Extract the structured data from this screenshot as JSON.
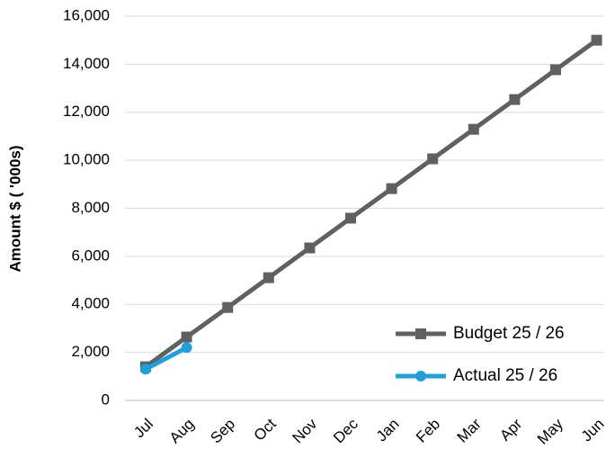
{
  "chart_data": {
    "type": "line",
    "y_label": "Amount $ ( '000s)",
    "categories": [
      "Jul",
      "Aug",
      "Sep",
      "Oct",
      "Nov",
      "Dec",
      "Jan",
      "Feb",
      "Mar",
      "Apr",
      "May",
      "Jun"
    ],
    "series": [
      {
        "name": "Budget 25 / 26",
        "color": "#606060",
        "marker": "square",
        "values": [
          1400,
          2640,
          3870,
          5110,
          6350,
          7590,
          8820,
          10060,
          11290,
          12530,
          13770,
          15000
        ]
      },
      {
        "name": "Actual 25 / 26",
        "color": "#1ea0dc",
        "marker": "circle",
        "values": [
          1300,
          2200,
          null,
          null,
          null,
          null,
          null,
          null,
          null,
          null,
          null,
          null
        ]
      }
    ],
    "ylim": [
      0,
      16000
    ],
    "yticks": [
      0,
      {
        "value": 2000,
        "label": "2,000"
      },
      {
        "value": 4000,
        "label": "4,000"
      },
      {
        "value": 6000,
        "label": "6,000"
      },
      {
        "value": 8000,
        "label": "8,000"
      },
      {
        "value": 10000,
        "label": "10,000"
      },
      {
        "value": 12000,
        "label": "12,000"
      },
      {
        "value": 14000,
        "label": "14,000"
      },
      {
        "value": 16000,
        "label": "16,000"
      }
    ],
    "grid": true,
    "legend": "lower right"
  }
}
